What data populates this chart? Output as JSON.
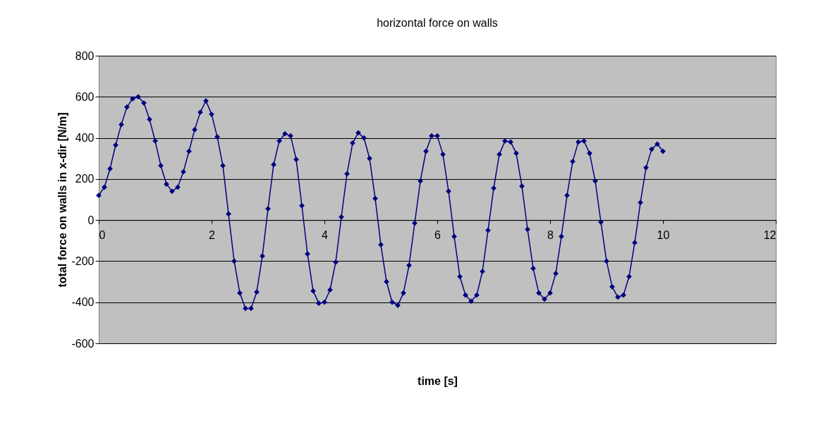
{
  "chart_data": {
    "type": "line",
    "title": "horizontal force on walls",
    "xlabel": "time [s]",
    "ylabel": "total force on walls in x-dir [N/m]",
    "x": [
      0,
      0.1,
      0.2,
      0.3,
      0.4,
      0.5,
      0.6,
      0.7,
      0.8,
      0.9,
      1.0,
      1.1,
      1.2,
      1.3,
      1.4,
      1.5,
      1.6,
      1.7,
      1.8,
      1.9,
      2.0,
      2.1,
      2.2,
      2.3,
      2.4,
      2.5,
      2.6,
      2.7,
      2.8,
      2.9,
      3.0,
      3.1,
      3.2,
      3.3,
      3.4,
      3.5,
      3.6,
      3.7,
      3.8,
      3.9,
      4.0,
      4.1,
      4.2,
      4.3,
      4.4,
      4.5,
      4.6,
      4.7,
      4.8,
      4.9,
      5.0,
      5.1,
      5.2,
      5.3,
      5.4,
      5.5,
      5.6,
      5.7,
      5.8,
      5.9,
      6.0,
      6.1,
      6.2,
      6.3,
      6.4,
      6.5,
      6.6,
      6.7,
      6.8,
      6.9,
      7.0,
      7.1,
      7.2,
      7.3,
      7.4,
      7.5,
      7.6,
      7.7,
      7.8,
      7.9,
      8.0,
      8.1,
      8.2,
      8.3,
      8.4,
      8.5,
      8.6,
      8.7,
      8.8,
      8.9,
      9.0,
      9.1,
      9.2,
      9.3,
      9.4,
      9.5,
      9.6,
      9.7,
      9.8,
      9.9,
      10.0
    ],
    "series": [
      {
        "color": "#000080",
        "values": [
          120,
          160,
          250,
          365,
          465,
          550,
          590,
          600,
          570,
          490,
          385,
          265,
          175,
          140,
          160,
          235,
          335,
          440,
          525,
          580,
          515,
          405,
          265,
          30,
          -200,
          -355,
          -430,
          -430,
          -350,
          -175,
          55,
          270,
          385,
          420,
          410,
          295,
          70,
          -165,
          -345,
          -405,
          -400,
          -340,
          -205,
          15,
          225,
          375,
          425,
          400,
          300,
          105,
          -120,
          -300,
          -400,
          -415,
          -355,
          -220,
          -15,
          190,
          335,
          410,
          410,
          320,
          140,
          -80,
          -275,
          -365,
          -395,
          -365,
          -250,
          -50,
          155,
          320,
          385,
          380,
          325,
          165,
          -45,
          -235,
          -355,
          -385,
          -355,
          -260,
          -80,
          120,
          285,
          380,
          385,
          325,
          190,
          -10,
          -200,
          -325,
          -375,
          -365,
          -275,
          -110,
          85,
          255,
          345,
          370,
          335
        ]
      }
    ],
    "xlim": [
      0,
      12
    ],
    "xticks": [
      0,
      2,
      4,
      6,
      8,
      10,
      12
    ],
    "ylim": [
      -600,
      800
    ],
    "yticks": [
      -600,
      -400,
      -200,
      0,
      200,
      400,
      600,
      800
    ],
    "grid": "y",
    "marker": "diamond",
    "line_style": "solid"
  }
}
